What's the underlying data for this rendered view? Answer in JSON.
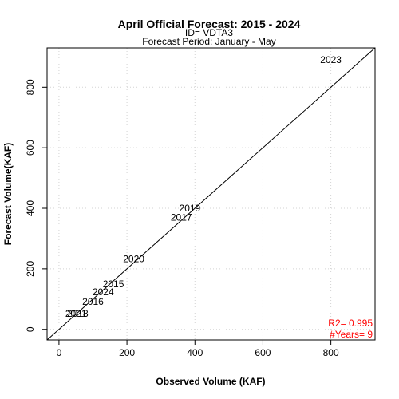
{
  "chart_data": {
    "type": "scatter",
    "title": "April Official Forecast: 2015 - 2024",
    "subtitle_lines": [
      "ID= VDTA3",
      "Forecast Period:  January - May"
    ],
    "xlabel": "Observed Volume (KAF)",
    "ylabel": "Forecast Volume(KAF)",
    "xlim": [
      -35,
      930
    ],
    "ylim": [
      -35,
      930
    ],
    "x_ticks": [
      0,
      200,
      400,
      600,
      800
    ],
    "y_ticks": [
      0,
      200,
      400,
      600,
      800
    ],
    "grid": true,
    "reference_line": "1:1",
    "points": [
      {
        "label": "2023",
        "x": 800,
        "y": 890
      },
      {
        "label": "2019",
        "x": 385,
        "y": 400
      },
      {
        "label": "2017",
        "x": 360,
        "y": 370
      },
      {
        "label": "2020",
        "x": 220,
        "y": 232
      },
      {
        "label": "2015",
        "x": 160,
        "y": 150
      },
      {
        "label": "2024",
        "x": 130,
        "y": 123
      },
      {
        "label": "2016",
        "x": 100,
        "y": 92
      },
      {
        "label": "2021",
        "x": 50,
        "y": 52
      },
      {
        "label": "2018",
        "x": 55,
        "y": 52
      }
    ],
    "stats": {
      "r2": "R2=  0.995",
      "years": "#Years=  9",
      "color": "#ff0000"
    }
  }
}
